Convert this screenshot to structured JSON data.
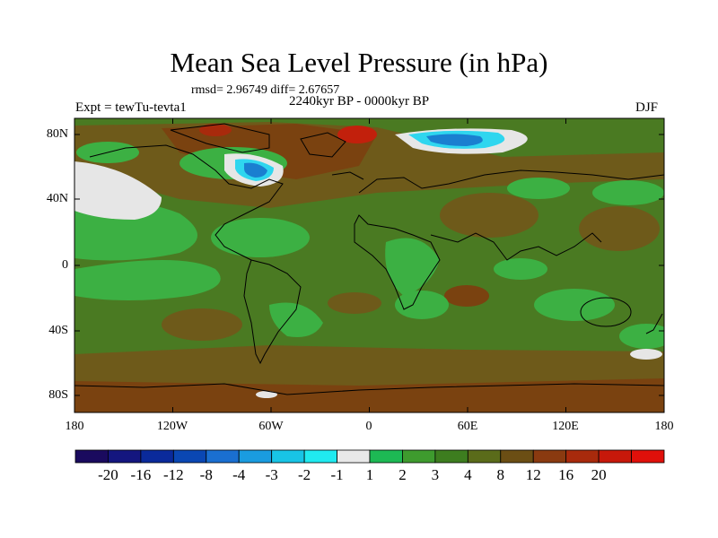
{
  "title": "Mean Sea Level Pressure (in hPa)",
  "stats": "rmsd= 2.96749 diff= 2.67657",
  "subtitle": "2240kyr BP - 0000kyr BP",
  "left_label": "Expt = tewTu-tevta1",
  "right_label": "DJF",
  "lat_ticks": [
    "80N",
    "40N",
    "0",
    "40S",
    "80S"
  ],
  "lon_ticks": [
    "180",
    "120W",
    "60W",
    "0",
    "60E",
    "120E",
    "180"
  ],
  "colorbar": {
    "colors": [
      "#1a0a5e",
      "#14167f",
      "#0a2a9b",
      "#0a47b3",
      "#1a6fd1",
      "#1a9ce0",
      "#18c4e6",
      "#20eaf0",
      "#e8e8e8",
      "#1db954",
      "#3e9b2e",
      "#3d7d1f",
      "#5a6b1a",
      "#6b4e14",
      "#8a3a10",
      "#a82a0c",
      "#c7180a",
      "#e0100a"
    ],
    "labels": [
      "-20",
      "-16",
      "-12",
      "-8",
      "-4",
      "-3",
      "-2",
      "-1",
      "1",
      "2",
      "3",
      "4",
      "8",
      "12",
      "16",
      "20"
    ]
  },
  "palette": {
    "base": "#4a7a22",
    "light_green": "#3cb043",
    "brown": "#6e5a1a",
    "dark_brown": "#7a4210",
    "red": "#c2200c",
    "white": "#e6e6e6",
    "blue": "#1a7fd0",
    "cyan": "#2fd6ef"
  }
}
